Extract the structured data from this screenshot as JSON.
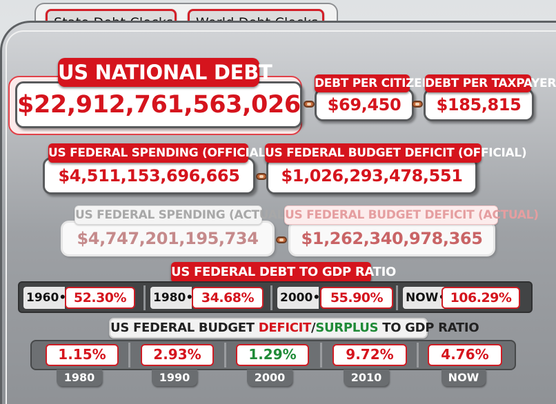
{
  "tabs": {
    "state": "State Debt Clocks",
    "world": "World Debt Clocks"
  },
  "national_debt": {
    "label": "US NATIONAL DEBT",
    "value": "$22,912,761,563,026"
  },
  "debt_per_citizen": {
    "label": "DEBT PER CITIZEN",
    "value": "$69,450"
  },
  "debt_per_taxpayer": {
    "label": "DEBT PER TAXPAYER",
    "value": "$185,815"
  },
  "spending_official": {
    "label": "US FEDERAL SPENDING (OFFICIAL)",
    "value": "$4,511,153,696,665"
  },
  "deficit_official": {
    "label": "US FEDERAL BUDGET DEFICIT (OFFICIAL)",
    "value": "$1,026,293,478,551"
  },
  "spending_actual": {
    "label": "US FEDERAL SPENDING (ACTUAL)",
    "value": "$4,747,201,195,734"
  },
  "deficit_actual": {
    "label": "US FEDERAL BUDGET DEFICIT (ACTUAL)",
    "value": "$1,262,340,978,365"
  },
  "debt_to_gdp": {
    "label": "US FEDERAL DEBT TO GDP RATIO",
    "items": [
      {
        "year": "1960",
        "value": "52.30%"
      },
      {
        "year": "1980",
        "value": "34.68%"
      },
      {
        "year": "2000",
        "value": "55.90%"
      },
      {
        "year": "NOW",
        "value": "106.29%"
      }
    ]
  },
  "deficit_surplus_to_gdp": {
    "label_part1": "US FEDERAL BUDGET ",
    "label_deficit": "DEFICIT",
    "label_slash": "/",
    "label_surplus": "SURPLUS",
    "label_part2": " TO GDP RATIO",
    "items": [
      {
        "year": "1980",
        "value": "1.15%",
        "kind": "deficit"
      },
      {
        "year": "1990",
        "value": "2.93%",
        "kind": "deficit"
      },
      {
        "year": "2000",
        "value": "1.29%",
        "kind": "surplus"
      },
      {
        "year": "2010",
        "value": "9.72%",
        "kind": "deficit"
      },
      {
        "year": "NOW",
        "value": "4.76%",
        "kind": "deficit"
      }
    ]
  },
  "colors": {
    "accent_red": "#d5141d",
    "surplus_green": "#1f8a37",
    "frame_grey": "#9ea1a5"
  }
}
